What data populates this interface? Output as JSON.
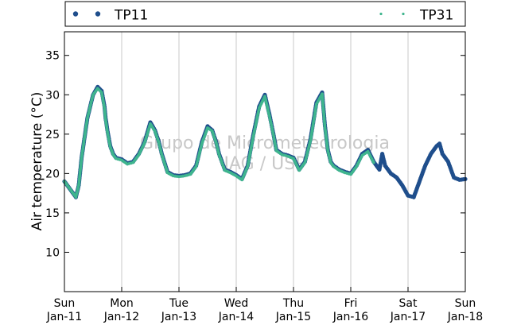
{
  "chart_data": {
    "type": "scatter",
    "ylabel": "Air temperature (°C)",
    "xlabel": "",
    "ylim": [
      5,
      38
    ],
    "xlim": [
      0,
      7
    ],
    "yticks": [
      10,
      15,
      20,
      25,
      30,
      35
    ],
    "xticks": [
      {
        "value": 0,
        "day": "Sun",
        "date": "Jan-11"
      },
      {
        "value": 1,
        "day": "Mon",
        "date": "Jan-12"
      },
      {
        "value": 2,
        "day": "Tue",
        "date": "Jan-13"
      },
      {
        "value": 3,
        "day": "Wed",
        "date": "Jan-14"
      },
      {
        "value": 4,
        "day": "Thu",
        "date": "Jan-15"
      },
      {
        "value": 5,
        "day": "Fri",
        "date": "Jan-16"
      },
      {
        "value": 6,
        "day": "Sat",
        "date": "Jan-17"
      },
      {
        "value": 7,
        "day": "Sun",
        "date": "Jan-18"
      }
    ],
    "grid": "vertical",
    "legend_position": "top",
    "watermark": [
      "Grupo de Micrometeorologia",
      "IAG / USP"
    ],
    "series": [
      {
        "name": "TP11",
        "color": "#1f4e8c",
        "marker": "dot",
        "x": [
          0.0,
          0.1,
          0.2,
          0.25,
          0.3,
          0.4,
          0.5,
          0.58,
          0.65,
          0.7,
          0.72,
          0.75,
          0.8,
          0.85,
          0.9,
          1.0,
          1.1,
          1.2,
          1.3,
          1.4,
          1.5,
          1.58,
          1.65,
          1.7,
          1.8,
          1.9,
          2.0,
          2.1,
          2.2,
          2.3,
          2.4,
          2.5,
          2.58,
          2.65,
          2.7,
          2.8,
          2.9,
          3.0,
          3.1,
          3.2,
          3.3,
          3.4,
          3.5,
          3.58,
          3.65,
          3.7,
          3.8,
          3.9,
          4.0,
          4.1,
          4.2,
          4.3,
          4.4,
          4.5,
          4.55,
          4.6,
          4.65,
          4.7,
          4.8,
          4.9,
          5.0,
          5.1,
          5.2,
          5.3,
          5.4,
          5.5,
          5.55,
          5.6,
          5.7,
          5.8,
          5.9,
          6.0,
          6.1,
          6.2,
          6.3,
          6.4,
          6.5,
          6.55,
          6.6,
          6.7,
          6.8,
          6.9,
          7.0
        ],
        "y": [
          19.0,
          18.0,
          17.0,
          18.5,
          22.0,
          27.0,
          30.0,
          31.0,
          30.5,
          28.5,
          27.0,
          25.5,
          23.5,
          22.5,
          22.0,
          21.8,
          21.3,
          21.5,
          22.5,
          24.0,
          26.5,
          25.5,
          24.0,
          22.5,
          20.2,
          19.8,
          19.7,
          19.8,
          20.0,
          21.0,
          24.0,
          26.0,
          25.5,
          24.0,
          22.5,
          20.5,
          20.2,
          19.8,
          19.3,
          21.0,
          25.0,
          28.5,
          30.0,
          27.5,
          25.0,
          23.0,
          22.5,
          22.3,
          22.0,
          20.5,
          21.5,
          24.5,
          29.0,
          30.3,
          26.0,
          23.0,
          21.5,
          21.0,
          20.5,
          20.2,
          20.0,
          21.0,
          22.5,
          23.0,
          21.5,
          20.5,
          22.5,
          21.0,
          20.0,
          19.5,
          18.5,
          17.2,
          17.0,
          19.0,
          21.0,
          22.5,
          23.5,
          23.8,
          22.5,
          21.5,
          19.5,
          19.2,
          19.3
        ]
      },
      {
        "name": "TP31",
        "color": "#3fb58e",
        "marker": "small-dot",
        "x": [
          0.0,
          0.1,
          0.2,
          0.25,
          0.3,
          0.4,
          0.5,
          0.58,
          0.65,
          0.7,
          0.72,
          0.75,
          0.8,
          0.85,
          0.9,
          1.0,
          1.1,
          1.2,
          1.3,
          1.4,
          1.5,
          1.58,
          1.65,
          1.7,
          1.8,
          1.9,
          2.0,
          2.1,
          2.2,
          2.3,
          2.4,
          2.5,
          2.58,
          2.65,
          2.7,
          2.8,
          2.9,
          3.0,
          3.1,
          3.2,
          3.3,
          3.4,
          3.5,
          3.58,
          3.65,
          3.7,
          3.8,
          3.9,
          4.0,
          4.1,
          4.2,
          4.3,
          4.4,
          4.5,
          4.55,
          4.6,
          4.65,
          4.7,
          4.8,
          4.9,
          5.0,
          5.1,
          5.2,
          5.3,
          5.4
        ],
        "y": [
          19.0,
          18.0,
          17.0,
          18.5,
          22.0,
          27.0,
          30.0,
          30.8,
          30.3,
          28.3,
          26.8,
          25.3,
          23.4,
          22.4,
          21.9,
          21.7,
          21.2,
          21.4,
          22.4,
          23.9,
          26.3,
          25.4,
          23.9,
          22.4,
          20.1,
          19.7,
          19.6,
          19.7,
          19.9,
          20.9,
          23.8,
          25.8,
          25.4,
          23.9,
          22.4,
          20.4,
          20.1,
          19.7,
          19.2,
          20.9,
          24.8,
          28.3,
          29.8,
          27.3,
          24.9,
          22.9,
          22.4,
          22.2,
          21.9,
          20.4,
          21.4,
          24.3,
          28.8,
          30.1,
          25.8,
          22.9,
          21.4,
          20.9,
          20.4,
          20.1,
          19.9,
          20.9,
          22.3,
          22.8,
          21.4
        ]
      }
    ]
  }
}
